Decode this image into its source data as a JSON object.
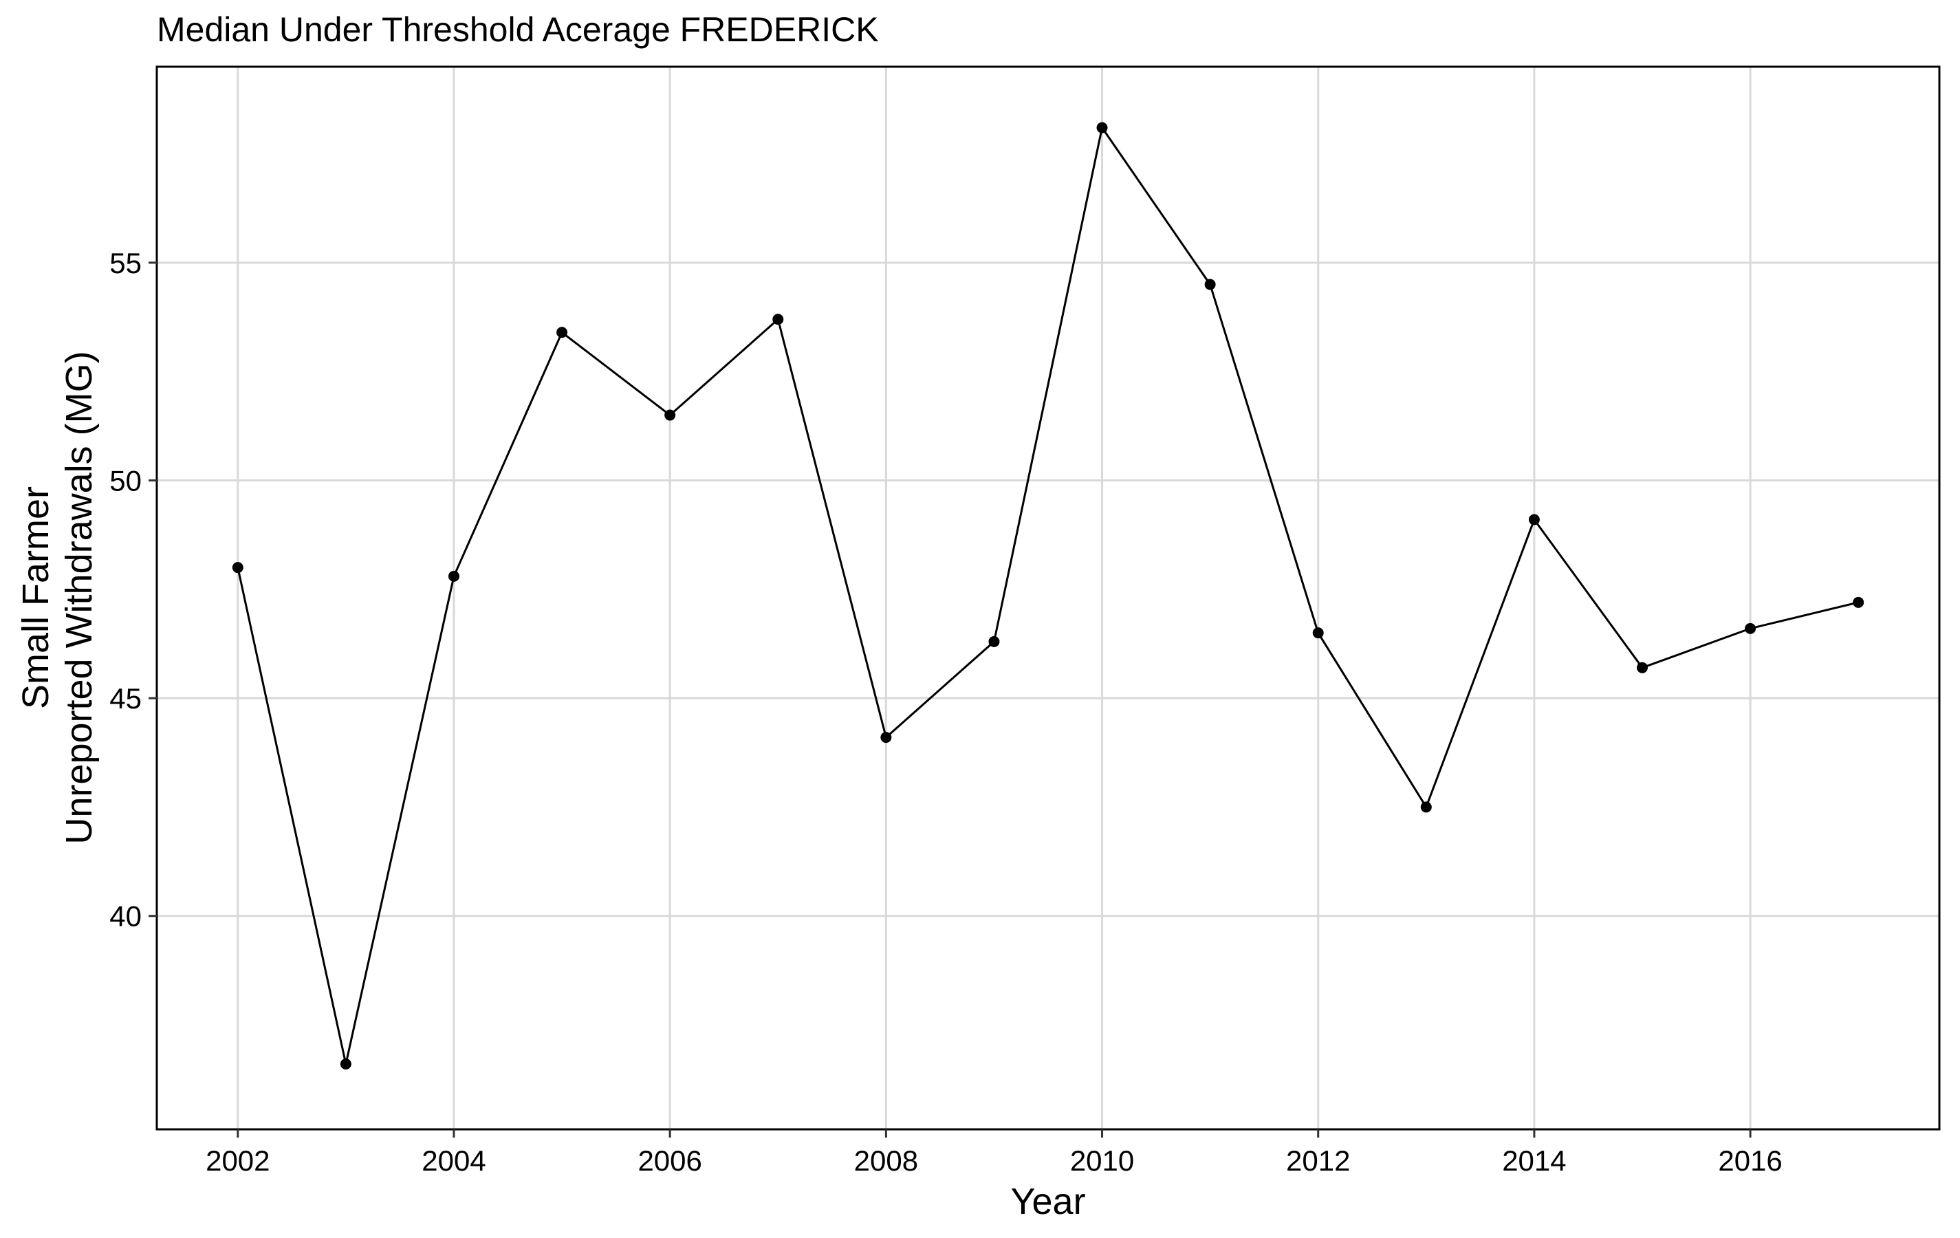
{
  "chart_data": {
    "type": "line",
    "title": "Median Under Threshold Acerage FREDERICK",
    "xlabel": "Year",
    "ylabel_lines": [
      "Small Farmer",
      "Unreported Withdrawals (MG)"
    ],
    "xlim": [
      2001.25,
      2017.75
    ],
    "ylim": [
      35.1,
      59.5
    ],
    "x_ticks": [
      2002,
      2004,
      2006,
      2008,
      2010,
      2012,
      2014,
      2016
    ],
    "y_ticks": [
      40,
      45,
      50,
      55
    ],
    "grid": true,
    "series": [
      {
        "x": [
          2002,
          2003,
          2004,
          2005,
          2006,
          2007,
          2008,
          2009,
          2010,
          2011,
          2012,
          2013,
          2014,
          2015,
          2016,
          2017
        ],
        "values": [
          48.0,
          36.6,
          47.8,
          53.4,
          51.5,
          53.7,
          44.1,
          46.3,
          58.1,
          54.5,
          46.5,
          42.5,
          49.1,
          45.7,
          46.6,
          47.2
        ]
      }
    ],
    "colors": {
      "line": "#000000",
      "grid": "#d9d9d9",
      "panel_border": "#000000"
    }
  }
}
